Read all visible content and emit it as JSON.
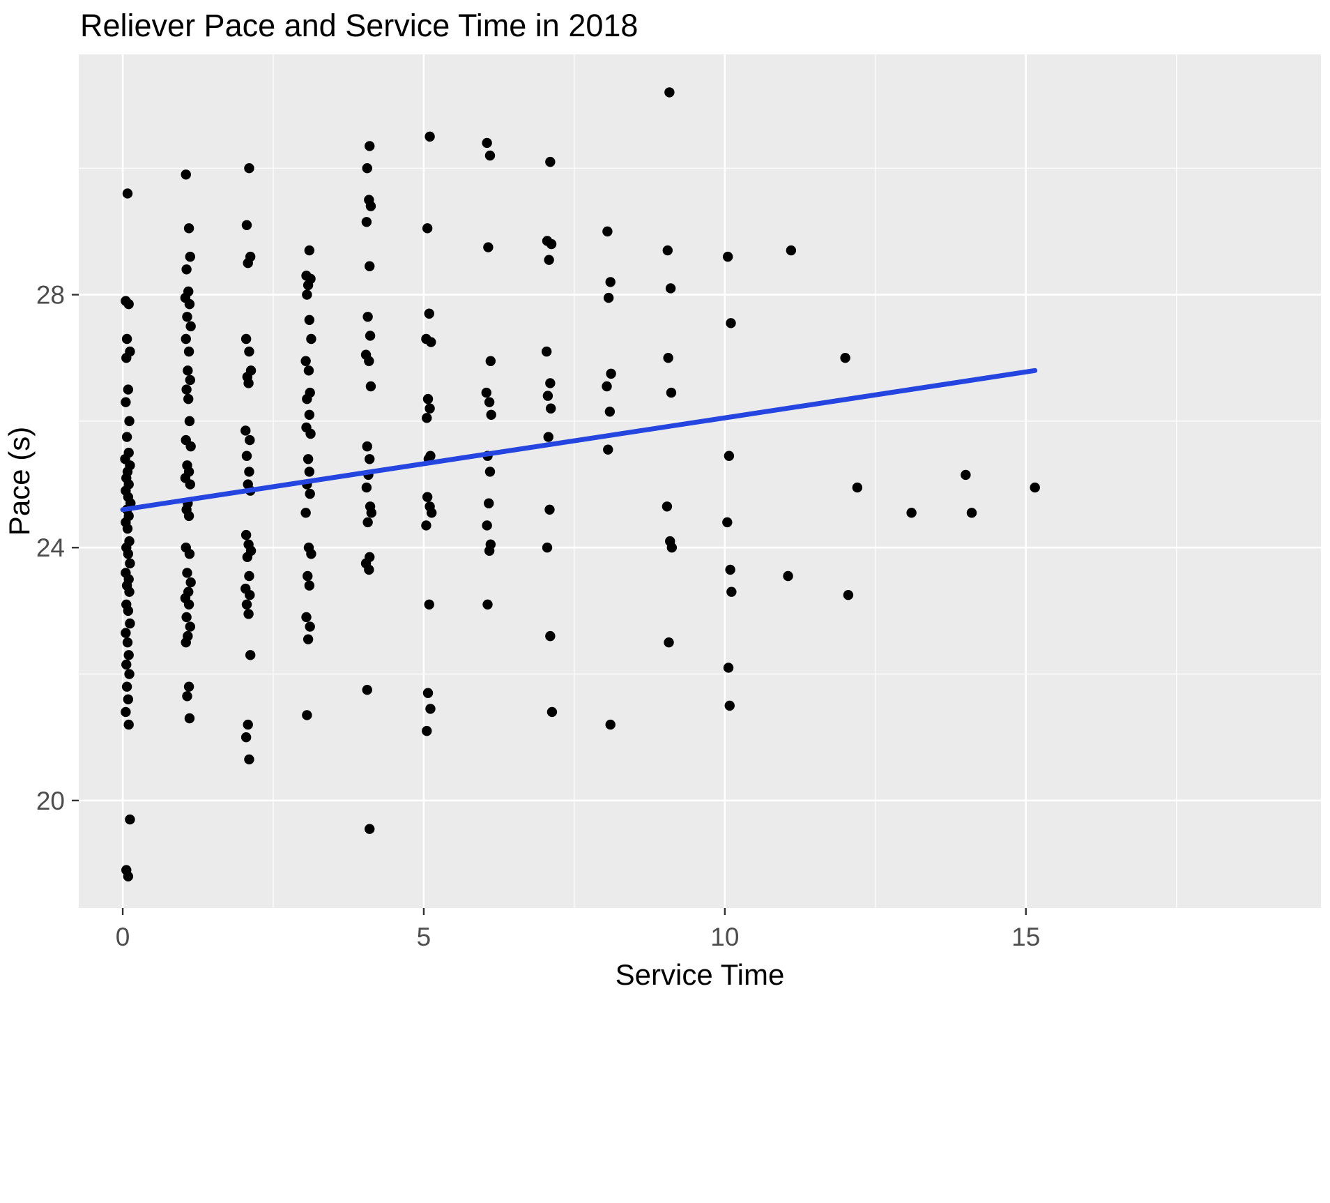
{
  "chart_data": {
    "type": "scatter",
    "title": "Reliever Pace and Service Time in 2018",
    "xlabel": "Service Time",
    "ylabel": "Pace (s)",
    "x_ticks": [
      0,
      5,
      10,
      15
    ],
    "x_minor_ticks": [
      2.5,
      7.5,
      12.5,
      17.5
    ],
    "y_ticks": [
      20,
      24,
      28
    ],
    "y_minor_ticks": [
      22,
      26,
      30
    ],
    "xlim": [
      -0.73,
      19.9
    ],
    "ylim": [
      18.3,
      31.8
    ],
    "grid": "on",
    "legend": "none",
    "panel_color": "#EBEBEB",
    "grid_color": "#FFFFFF",
    "point_color": "#000000",
    "tick_color": "#333333",
    "trend_line": {
      "x1": 0,
      "y1": 24.6,
      "x2": 15.15,
      "y2": 26.8,
      "color": "#2545E0",
      "width": 7
    },
    "points": [
      [
        0.08,
        29.6
      ],
      [
        0.05,
        27.9
      ],
      [
        0.1,
        27.85
      ],
      [
        0.07,
        27.3
      ],
      [
        0.12,
        27.1
      ],
      [
        0.06,
        27.0
      ],
      [
        0.09,
        26.5
      ],
      [
        0.05,
        26.3
      ],
      [
        0.11,
        26.0
      ],
      [
        0.07,
        25.75
      ],
      [
        0.1,
        25.5
      ],
      [
        0.04,
        25.4
      ],
      [
        0.12,
        25.3
      ],
      [
        0.08,
        25.2
      ],
      [
        0.06,
        25.1
      ],
      [
        0.1,
        25.0
      ],
      [
        0.05,
        24.9
      ],
      [
        0.09,
        24.8
      ],
      [
        0.13,
        24.7
      ],
      [
        0.07,
        24.6
      ],
      [
        0.1,
        24.5
      ],
      [
        0.05,
        24.4
      ],
      [
        0.08,
        24.3
      ],
      [
        0.11,
        24.1
      ],
      [
        0.06,
        24.0
      ],
      [
        0.09,
        23.9
      ],
      [
        0.12,
        23.75
      ],
      [
        0.05,
        23.6
      ],
      [
        0.1,
        23.5
      ],
      [
        0.07,
        23.4
      ],
      [
        0.11,
        23.3
      ],
      [
        0.06,
        23.1
      ],
      [
        0.09,
        23.0
      ],
      [
        0.12,
        22.8
      ],
      [
        0.05,
        22.65
      ],
      [
        0.08,
        22.5
      ],
      [
        0.1,
        22.3
      ],
      [
        0.06,
        22.15
      ],
      [
        0.11,
        22.0
      ],
      [
        0.07,
        21.8
      ],
      [
        0.09,
        21.6
      ],
      [
        0.05,
        21.4
      ],
      [
        0.1,
        21.2
      ],
      [
        0.12,
        19.7
      ],
      [
        0.06,
        18.9
      ],
      [
        0.09,
        18.8
      ],
      [
        1.05,
        29.9
      ],
      [
        1.1,
        29.05
      ],
      [
        1.12,
        28.6
      ],
      [
        1.06,
        28.4
      ],
      [
        1.09,
        28.05
      ],
      [
        1.04,
        27.95
      ],
      [
        1.11,
        27.85
      ],
      [
        1.07,
        27.65
      ],
      [
        1.13,
        27.5
      ],
      [
        1.05,
        27.3
      ],
      [
        1.1,
        27.1
      ],
      [
        1.08,
        26.8
      ],
      [
        1.12,
        26.65
      ],
      [
        1.06,
        26.5
      ],
      [
        1.09,
        26.35
      ],
      [
        1.11,
        26.0
      ],
      [
        1.05,
        25.7
      ],
      [
        1.13,
        25.6
      ],
      [
        1.07,
        25.3
      ],
      [
        1.1,
        25.2
      ],
      [
        1.04,
        25.1
      ],
      [
        1.12,
        25.0
      ],
      [
        1.08,
        24.7
      ],
      [
        1.06,
        24.6
      ],
      [
        1.1,
        24.5
      ],
      [
        1.05,
        24.0
      ],
      [
        1.11,
        23.9
      ],
      [
        1.07,
        23.6
      ],
      [
        1.13,
        23.45
      ],
      [
        1.09,
        23.3
      ],
      [
        1.04,
        23.2
      ],
      [
        1.1,
        23.1
      ],
      [
        1.06,
        22.9
      ],
      [
        1.12,
        22.75
      ],
      [
        1.08,
        22.6
      ],
      [
        1.05,
        22.5
      ],
      [
        1.1,
        21.8
      ],
      [
        1.07,
        21.65
      ],
      [
        1.11,
        21.3
      ],
      [
        2.1,
        30.0
      ],
      [
        2.06,
        29.1
      ],
      [
        2.12,
        28.6
      ],
      [
        2.08,
        28.5
      ],
      [
        2.05,
        27.3
      ],
      [
        2.1,
        27.1
      ],
      [
        2.13,
        26.8
      ],
      [
        2.07,
        26.7
      ],
      [
        2.09,
        26.6
      ],
      [
        2.04,
        25.85
      ],
      [
        2.11,
        25.7
      ],
      [
        2.06,
        25.45
      ],
      [
        2.1,
        25.2
      ],
      [
        2.08,
        25.0
      ],
      [
        2.12,
        24.9
      ],
      [
        2.05,
        24.2
      ],
      [
        2.09,
        24.05
      ],
      [
        2.13,
        23.95
      ],
      [
        2.07,
        23.85
      ],
      [
        2.1,
        23.55
      ],
      [
        2.04,
        23.35
      ],
      [
        2.11,
        23.25
      ],
      [
        2.06,
        23.1
      ],
      [
        2.09,
        22.95
      ],
      [
        2.12,
        22.3
      ],
      [
        2.08,
        21.2
      ],
      [
        2.05,
        21.0
      ],
      [
        2.1,
        20.65
      ],
      [
        3.1,
        28.7
      ],
      [
        3.05,
        28.3
      ],
      [
        3.12,
        28.25
      ],
      [
        3.08,
        28.15
      ],
      [
        3.06,
        28.0
      ],
      [
        3.1,
        27.6
      ],
      [
        3.13,
        27.3
      ],
      [
        3.04,
        26.95
      ],
      [
        3.09,
        26.8
      ],
      [
        3.11,
        26.45
      ],
      [
        3.06,
        26.35
      ],
      [
        3.1,
        26.1
      ],
      [
        3.05,
        25.9
      ],
      [
        3.12,
        25.8
      ],
      [
        3.08,
        25.4
      ],
      [
        3.1,
        25.2
      ],
      [
        3.06,
        25.0
      ],
      [
        3.11,
        24.85
      ],
      [
        3.04,
        24.55
      ],
      [
        3.09,
        24.0
      ],
      [
        3.13,
        23.9
      ],
      [
        3.07,
        23.55
      ],
      [
        3.1,
        23.4
      ],
      [
        3.05,
        22.9
      ],
      [
        3.11,
        22.75
      ],
      [
        3.08,
        22.55
      ],
      [
        3.06,
        21.35
      ],
      [
        4.1,
        30.35
      ],
      [
        4.06,
        30.0
      ],
      [
        4.09,
        29.5
      ],
      [
        4.12,
        29.4
      ],
      [
        4.05,
        29.15
      ],
      [
        4.1,
        28.45
      ],
      [
        4.07,
        27.65
      ],
      [
        4.11,
        27.35
      ],
      [
        4.04,
        27.05
      ],
      [
        4.09,
        26.95
      ],
      [
        4.12,
        26.55
      ],
      [
        4.06,
        25.6
      ],
      [
        4.1,
        25.4
      ],
      [
        4.08,
        25.15
      ],
      [
        4.05,
        24.95
      ],
      [
        4.11,
        24.65
      ],
      [
        4.13,
        24.55
      ],
      [
        4.07,
        24.4
      ],
      [
        4.1,
        23.85
      ],
      [
        4.04,
        23.75
      ],
      [
        4.09,
        23.65
      ],
      [
        4.06,
        21.75
      ],
      [
        4.1,
        19.55
      ],
      [
        5.1,
        30.5
      ],
      [
        5.06,
        29.05
      ],
      [
        5.09,
        27.7
      ],
      [
        5.04,
        27.3
      ],
      [
        5.12,
        27.25
      ],
      [
        5.07,
        26.35
      ],
      [
        5.1,
        26.2
      ],
      [
        5.05,
        26.05
      ],
      [
        5.11,
        25.45
      ],
      [
        5.08,
        25.4
      ],
      [
        5.06,
        24.8
      ],
      [
        5.1,
        24.65
      ],
      [
        5.13,
        24.55
      ],
      [
        5.04,
        24.35
      ],
      [
        5.09,
        23.1
      ],
      [
        5.07,
        21.7
      ],
      [
        5.11,
        21.45
      ],
      [
        5.05,
        21.1
      ],
      [
        6.05,
        30.4
      ],
      [
        6.1,
        30.2
      ],
      [
        6.07,
        28.75
      ],
      [
        6.11,
        26.95
      ],
      [
        6.04,
        26.45
      ],
      [
        6.09,
        26.3
      ],
      [
        6.12,
        26.1
      ],
      [
        6.06,
        25.45
      ],
      [
        6.1,
        25.2
      ],
      [
        6.08,
        24.7
      ],
      [
        6.05,
        24.35
      ],
      [
        6.11,
        24.05
      ],
      [
        6.09,
        23.95
      ],
      [
        6.06,
        23.1
      ],
      [
        7.1,
        30.1
      ],
      [
        7.05,
        28.85
      ],
      [
        7.12,
        28.8
      ],
      [
        7.08,
        28.55
      ],
      [
        7.04,
        27.1
      ],
      [
        7.1,
        26.6
      ],
      [
        7.06,
        26.4
      ],
      [
        7.11,
        26.2
      ],
      [
        7.07,
        25.75
      ],
      [
        7.09,
        24.6
      ],
      [
        7.05,
        24.0
      ],
      [
        7.1,
        22.6
      ],
      [
        7.13,
        21.4
      ],
      [
        8.05,
        29.0
      ],
      [
        8.1,
        28.2
      ],
      [
        8.07,
        27.95
      ],
      [
        8.11,
        26.75
      ],
      [
        8.04,
        26.55
      ],
      [
        8.09,
        26.15
      ],
      [
        8.06,
        25.55
      ],
      [
        8.1,
        21.2
      ],
      [
        9.08,
        31.2
      ],
      [
        9.05,
        28.7
      ],
      [
        9.1,
        28.1
      ],
      [
        9.06,
        27.0
      ],
      [
        9.11,
        26.45
      ],
      [
        9.04,
        24.65
      ],
      [
        9.09,
        24.1
      ],
      [
        9.12,
        24.0
      ],
      [
        9.07,
        22.5
      ],
      [
        10.05,
        28.6
      ],
      [
        10.1,
        27.55
      ],
      [
        10.07,
        25.45
      ],
      [
        10.04,
        24.4
      ],
      [
        10.09,
        23.65
      ],
      [
        10.11,
        23.3
      ],
      [
        10.06,
        22.1
      ],
      [
        10.08,
        21.5
      ],
      [
        11.1,
        28.7
      ],
      [
        11.05,
        23.55
      ],
      [
        12.0,
        27.0
      ],
      [
        12.2,
        24.95
      ],
      [
        12.05,
        23.25
      ],
      [
        13.1,
        24.55
      ],
      [
        14.0,
        25.15
      ],
      [
        14.1,
        24.55
      ],
      [
        15.15,
        24.95
      ]
    ]
  }
}
